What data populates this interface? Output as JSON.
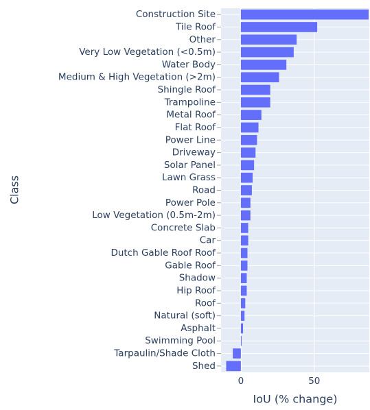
{
  "chart_data": {
    "type": "barh",
    "categories": [
      "Construction Site",
      "Tile Roof",
      "Other",
      "Very Low Vegetation (<0.5m)",
      "Water Body",
      "Medium & High Vegetation (>2m)",
      "Shingle Roof",
      "Trampoline",
      "Metal Roof",
      "Flat Roof",
      "Power Line",
      "Driveway",
      "Solar Panel",
      "Lawn Grass",
      "Road",
      "Power Pole",
      "Low Vegetation (0.5m-2m)",
      "Concrete Slab",
      "Car",
      "Dutch Gable Roof Roof",
      "Gable Roof",
      "Shadow",
      "Hip Roof",
      "Roof",
      "Natural (soft)",
      "Asphalt",
      "Swimming Pool",
      "Tarpaulin/Shade Cloth",
      "Shed"
    ],
    "values": [
      87,
      52,
      38,
      36,
      31,
      26,
      20,
      20,
      14,
      12,
      11,
      10,
      9,
      8,
      7.5,
      6.5,
      6.5,
      5,
      5,
      4.5,
      4.5,
      4,
      4,
      3,
      2.5,
      1.5,
      0.5,
      -5.5,
      -10
    ],
    "color": "#636efa",
    "xlabel": "IoU (% change)",
    "ylabel": "Class",
    "xlim": [
      -13.5,
      87.5
    ],
    "xticks": [
      0,
      50
    ],
    "grid": true
  }
}
